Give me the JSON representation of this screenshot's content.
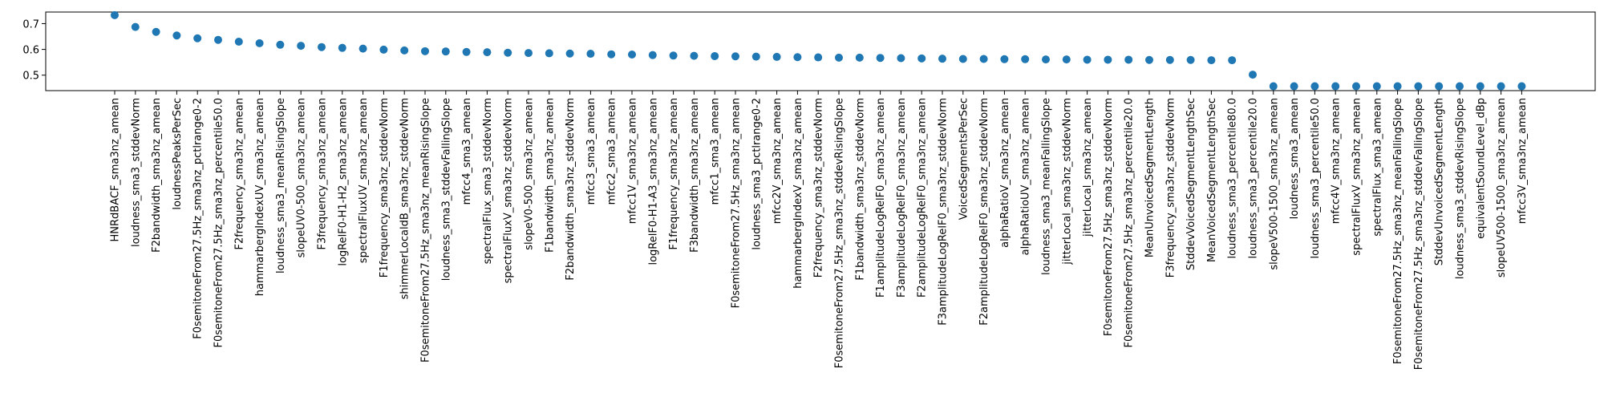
{
  "chart_data": {
    "type": "scatter",
    "title": "",
    "xlabel": "",
    "ylabel": "",
    "ylim": [
      0.44,
      0.745
    ],
    "yticks": [
      0.5,
      0.6,
      0.7
    ],
    "ytick_labels": [
      "0.5",
      "0.6",
      "0.7"
    ],
    "grid": false,
    "colors": {
      "marker": "#1f77b4"
    },
    "categories": [
      "HNRdBACF_sma3nz_amean",
      "loudness_sma3_stddevNorm",
      "F2bandwidth_sma3nz_amean",
      "loudnessPeaksPerSec",
      "F0semitoneFrom27.5Hz_sma3nz_pctlrange0-2",
      "F0semitoneFrom27.5Hz_sma3nz_percentile50.0",
      "F2frequency_sma3nz_amean",
      "hammarbergIndexUV_sma3nz_amean",
      "loudness_sma3_meanRisingSlope",
      "slopeUV0-500_sma3nz_amean",
      "F3frequency_sma3nz_amean",
      "logRelF0-H1-H2_sma3nz_amean",
      "spectralFluxUV_sma3nz_amean",
      "F1frequency_sma3nz_stddevNorm",
      "shimmerLocaldB_sma3nz_stddevNorm",
      "F0semitoneFrom27.5Hz_sma3nz_meanRisingSlope",
      "loudness_sma3_stddevFallingSlope",
      "mfcc4_sma3_amean",
      "spectralFlux_sma3_stddevNorm",
      "spectralFluxV_sma3nz_stddevNorm",
      "slopeV0-500_sma3nz_amean",
      "F1bandwidth_sma3nz_amean",
      "F2bandwidth_sma3nz_stddevNorm",
      "mfcc3_sma3_amean",
      "mfcc2_sma3_amean",
      "mfcc1V_sma3nz_amean",
      "logRelF0-H1-A3_sma3nz_amean",
      "F1frequency_sma3nz_amean",
      "F3bandwidth_sma3nz_amean",
      "mfcc1_sma3_amean",
      "F0semitoneFrom27.5Hz_sma3nz_amean",
      "loudness_sma3_pctlrange0-2",
      "mfcc2V_sma3nz_amean",
      "hammarbergIndexV_sma3nz_amean",
      "F2frequency_sma3nz_stddevNorm",
      "F0semitoneFrom27.5Hz_sma3nz_stddevRisingSlope",
      "F1bandwidth_sma3nz_stddevNorm",
      "F1amplitudeLogRelF0_sma3nz_amean",
      "F3amplitudeLogRelF0_sma3nz_amean",
      "F2amplitudeLogRelF0_sma3nz_amean",
      "F3amplitudeLogRelF0_sma3nz_stddevNorm",
      "VoicedSegmentsPerSec",
      "F2amplitudeLogRelF0_sma3nz_stddevNorm",
      "alphaRatioV_sma3nz_amean",
      "alphaRatioUV_sma3nz_amean",
      "loudness_sma3_meanFallingSlope",
      "jitterLocal_sma3nz_stddevNorm",
      "jitterLocal_sma3nz_amean",
      "F0semitoneFrom27.5Hz_sma3nz_stddevNorm",
      "F0semitoneFrom27.5Hz_sma3nz_percentile20.0",
      "MeanUnvoicedSegmentLength",
      "F3frequency_sma3nz_stddevNorm",
      "StddevVoicedSegmentLengthSec",
      "MeanVoicedSegmentLengthSec",
      "loudness_sma3_percentile80.0",
      "loudness_sma3_percentile20.0",
      "slopeV500-1500_sma3nz_amean",
      "loudness_sma3_amean",
      "loudness_sma3_percentile50.0",
      "mfcc4V_sma3nz_amean",
      "spectralFluxV_sma3nz_amean",
      "spectralFlux_sma3_amean",
      "F0semitoneFrom27.5Hz_sma3nz_meanFallingSlope",
      "F0semitoneFrom27.5Hz_sma3nz_stddevFallingSlope",
      "StddevUnvoicedSegmentLength",
      "loudness_sma3_stddevRisingSlope",
      "equivalentSoundLevel_dBp",
      "slopeUV500-1500_sma3nz_amean",
      "mfcc3V_sma3nz_amean"
    ],
    "values": [
      0.733,
      0.687,
      0.668,
      0.654,
      0.643,
      0.637,
      0.63,
      0.624,
      0.618,
      0.614,
      0.609,
      0.606,
      0.603,
      0.599,
      0.596,
      0.593,
      0.592,
      0.59,
      0.589,
      0.587,
      0.586,
      0.585,
      0.584,
      0.583,
      0.581,
      0.58,
      0.578,
      0.576,
      0.575,
      0.574,
      0.573,
      0.572,
      0.571,
      0.57,
      0.569,
      0.568,
      0.568,
      0.567,
      0.566,
      0.565,
      0.564,
      0.563,
      0.563,
      0.562,
      0.562,
      0.561,
      0.561,
      0.56,
      0.56,
      0.56,
      0.559,
      0.559,
      0.559,
      0.558,
      0.558,
      0.502,
      0.457,
      0.457,
      0.457,
      0.457,
      0.457,
      0.457,
      0.457,
      0.457,
      0.457,
      0.457,
      0.457,
      0.457,
      0.457
    ]
  }
}
